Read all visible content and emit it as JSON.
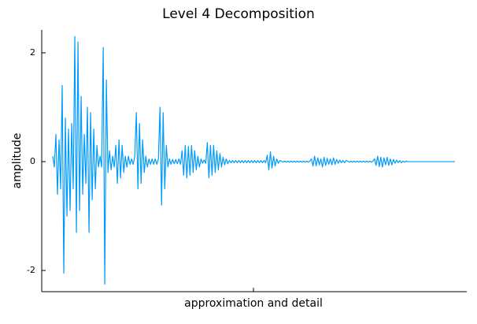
{
  "chart_data": {
    "type": "line",
    "title": "Level 4 Decomposition",
    "xlabel": "approximation and detail",
    "ylabel": "amplitude",
    "color": "#009af9",
    "ylim": [
      -2.39,
      2.42
    ],
    "yticks": [
      -2,
      0,
      2
    ],
    "grid": false,
    "values": [
      0.1,
      -0.1,
      0.5,
      -0.6,
      0.4,
      -0.5,
      1.4,
      -2.05,
      0.8,
      -1.0,
      0.6,
      -0.9,
      0.7,
      -0.5,
      2.3,
      -1.3,
      2.2,
      -0.9,
      1.2,
      -0.6,
      0.5,
      -0.4,
      1.0,
      -1.3,
      0.9,
      -0.7,
      0.6,
      -0.5,
      0.3,
      -0.1,
      0.1,
      -0.1,
      2.1,
      -2.25,
      1.5,
      -0.2,
      0.2,
      -0.15,
      0.1,
      -0.1,
      0.3,
      -0.4,
      0.4,
      -0.3,
      0.3,
      -0.2,
      0.1,
      -0.1,
      0.1,
      -0.05,
      0.05,
      -0.05,
      0.1,
      0.9,
      -0.5,
      0.7,
      -0.4,
      0.4,
      -0.2,
      0.1,
      -0.1,
      0.05,
      -0.05,
      0.05,
      -0.05,
      0.05,
      -0.05,
      0.05,
      1.0,
      -0.8,
      0.9,
      -0.5,
      0.3,
      -0.1,
      0.05,
      -0.05,
      0.04,
      -0.04,
      0.04,
      -0.04,
      0.05,
      -0.05,
      0.2,
      -0.25,
      0.3,
      -0.3,
      0.28,
      -0.25,
      0.3,
      -0.2,
      0.2,
      -0.15,
      0.1,
      -0.1,
      0.05,
      -0.03,
      0.03,
      -0.03,
      0.35,
      -0.3,
      0.3,
      -0.25,
      0.3,
      -0.2,
      0.2,
      -0.15,
      0.15,
      -0.1,
      0.08,
      -0.06,
      0.05,
      -0.04,
      0.02,
      -0.02,
      0.02,
      -0.02,
      0.02,
      -0.02,
      0.02,
      -0.02,
      0.02,
      -0.02,
      0.02,
      -0.02,
      0.02,
      -0.02,
      0.02,
      -0.02,
      0.02,
      -0.02,
      0.02,
      -0.02,
      0.02,
      -0.02,
      0.02,
      -0.02,
      0.12,
      -0.15,
      0.18,
      -0.12,
      0.1,
      -0.08,
      0.05,
      -0.03,
      0.02,
      0.01,
      -0.01,
      0.01,
      -0.01,
      0.01,
      -0.01,
      0.01,
      -0.01,
      0.01,
      -0.01,
      0.01,
      -0.01,
      0.01,
      -0.01,
      0.01,
      -0.01,
      0.01,
      -0.01,
      0.01,
      0.05,
      -0.08,
      0.1,
      -0.08,
      0.07,
      -0.06,
      0.05,
      -0.1,
      0.08,
      -0.07,
      0.06,
      -0.05,
      0.05,
      -0.06,
      0.07,
      -0.05,
      0.04,
      -0.03,
      0.03,
      -0.02,
      0.02,
      -0.02,
      0.02,
      0.01,
      -0.01,
      0.01,
      -0.01,
      0.01,
      -0.01,
      0.01,
      -0.01,
      0.01,
      -0.01,
      0.01,
      -0.01,
      0.01,
      -0.01,
      0.01,
      -0.01,
      0.01,
      0.05,
      -0.07,
      0.1,
      -0.09,
      0.08,
      -0.1,
      0.07,
      -0.06,
      0.08,
      -0.07,
      0.05,
      -0.06,
      0.04,
      -0.03,
      0.03,
      -0.02,
      0.02,
      -0.02,
      0.01,
      -0.01,
      0.01,
      0,
      0,
      0,
      0,
      0,
      0,
      0,
      0,
      0,
      0,
      0,
      0,
      0,
      0,
      0,
      0,
      0,
      0,
      0,
      0,
      0,
      0,
      0,
      0,
      0,
      0,
      0,
      0,
      0,
      0,
      0
    ]
  }
}
